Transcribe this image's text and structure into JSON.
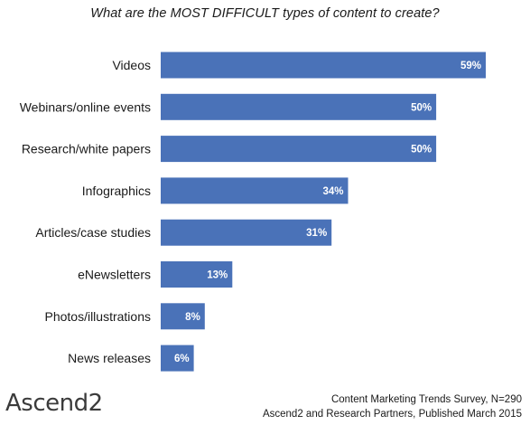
{
  "chart_data": {
    "type": "bar",
    "orientation": "horizontal",
    "title": "What are the MOST DIFFICULT types of content to create?",
    "categories": [
      "Videos",
      "Webinars/online events",
      "Research/white papers",
      "Infographics",
      "Articles/case studies",
      "eNewsletters",
      "Photos/illustrations",
      "News releases"
    ],
    "values": [
      59,
      50,
      50,
      34,
      31,
      13,
      8,
      6
    ],
    "value_labels": [
      "59%",
      "50%",
      "50%",
      "34%",
      "31%",
      "13%",
      "8%",
      "6%"
    ],
    "xlim": [
      0,
      59
    ],
    "grid": false,
    "bar_color": "#4a72b8"
  },
  "branding": {
    "logo_text": "Ascend",
    "logo_number": "2"
  },
  "footer": {
    "line1": "Content Marketing Trends Survey, N=290",
    "line2": "Ascend2 and Research Partners, Published March 2015"
  }
}
